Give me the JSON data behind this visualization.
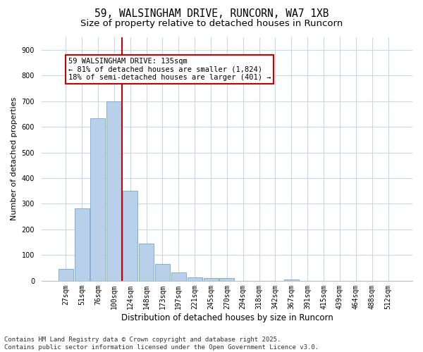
{
  "title": "59, WALSINGHAM DRIVE, RUNCORN, WA7 1XB",
  "subtitle": "Size of property relative to detached houses in Runcorn",
  "xlabel": "Distribution of detached houses by size in Runcorn",
  "ylabel": "Number of detached properties",
  "categories": [
    "27sqm",
    "51sqm",
    "76sqm",
    "100sqm",
    "124sqm",
    "148sqm",
    "173sqm",
    "197sqm",
    "221sqm",
    "245sqm",
    "270sqm",
    "294sqm",
    "318sqm",
    "342sqm",
    "367sqm",
    "391sqm",
    "415sqm",
    "439sqm",
    "464sqm",
    "488sqm",
    "512sqm"
  ],
  "bar_values": [
    47,
    283,
    633,
    700,
    350,
    145,
    65,
    32,
    12,
    10,
    10,
    0,
    0,
    0,
    5,
    0,
    0,
    0,
    0,
    0,
    0
  ],
  "bar_color": "#b8d0ea",
  "bar_edgecolor": "#6aaad4",
  "vline_color": "#cc0000",
  "annotation_text": "59 WALSINGHAM DRIVE: 135sqm\n← 81% of detached houses are smaller (1,824)\n18% of semi-detached houses are larger (401) →",
  "annotation_box_color": "#cc0000",
  "ylim_max": 950,
  "yticks": [
    0,
    100,
    200,
    300,
    400,
    500,
    600,
    700,
    800,
    900
  ],
  "background_color": "#ffffff",
  "grid_color": "#c8d8e8",
  "footer_line1": "Contains HM Land Registry data © Crown copyright and database right 2025.",
  "footer_line2": "Contains public sector information licensed under the Open Government Licence v3.0.",
  "title_fontsize": 10.5,
  "subtitle_fontsize": 9.5,
  "xlabel_fontsize": 8.5,
  "ylabel_fontsize": 8,
  "tick_fontsize": 7,
  "annotation_fontsize": 7.5,
  "footer_fontsize": 6.5
}
